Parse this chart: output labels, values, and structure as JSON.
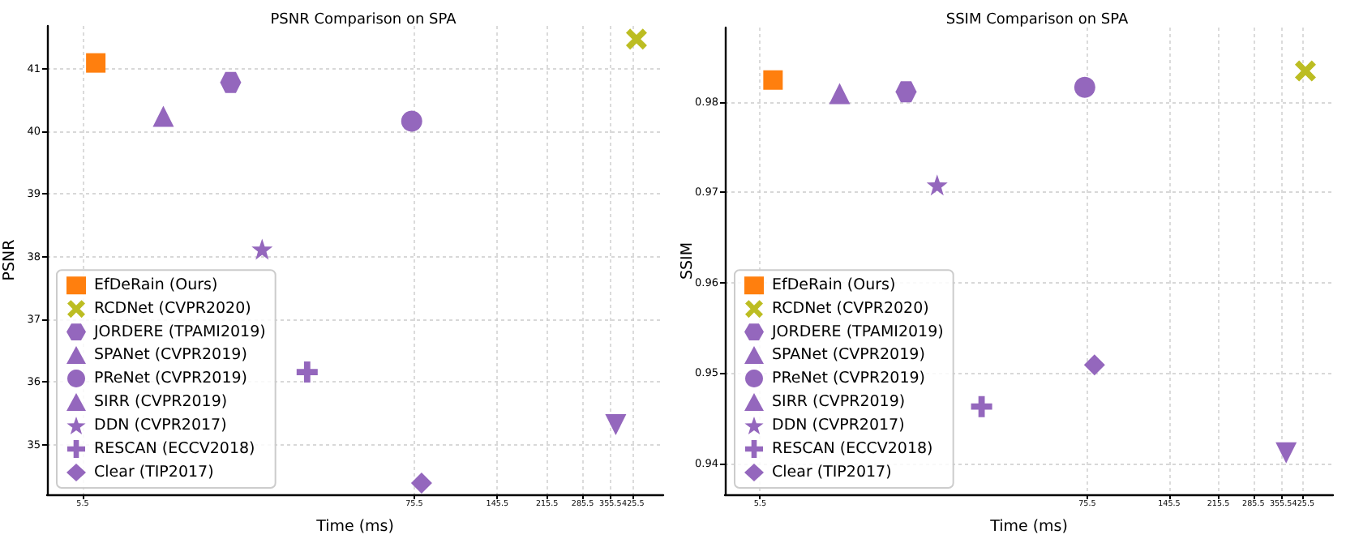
{
  "chart_data": [
    {
      "type": "scatter",
      "title": "PSNR Comparison on SPA",
      "xlabel": "Time (ms)",
      "ylabel": "PSNR",
      "log": "x",
      "grid": true,
      "legend": "bottom left",
      "xlim": [
        4.15,
        540
      ],
      "xticks": [
        5.5,
        75.5,
        145.5,
        215.5,
        285.5,
        355.5,
        425.5
      ],
      "ylim": [
        34.21,
        41.68
      ],
      "yticks": [
        35,
        36,
        37,
        38,
        39,
        40,
        41
      ],
      "series": [
        {
          "name": "EfDeRain (Ours)",
          "color": "#ff7f0e",
          "marker": "square",
          "x": [
            6.1
          ],
          "values": [
            41.09
          ]
        },
        {
          "name": "RCDNet (CVPR2020)",
          "color": "#bcbd22",
          "marker": "cross",
          "x": [
            437
          ],
          "values": [
            41.47
          ]
        },
        {
          "name": "JORDERE (TPAMI2019)",
          "color": "#9467bd",
          "x": [
            17.7
          ],
          "values": [
            40.78
          ]
        },
        {
          "name": "SPANet (CVPR2019)",
          "color": "#9467bd",
          "marker": "triangle",
          "x": [
            10.4
          ],
          "values": [
            40.24
          ]
        },
        {
          "name": "PReNet (CVPR2019)",
          "color": "#9467bd",
          "marker": "circle",
          "x": [
            74
          ],
          "values": [
            40.16
          ]
        },
        {
          "name": "SIRR (CVPR2019)",
          "color": "#9467bd",
          "marker": "triangle-down",
          "x": [
            371
          ],
          "values": [
            35.32
          ]
        },
        {
          "name": "DDN (CVPR2017)",
          "color": "#9467bd",
          "marker": "star",
          "x": [
            22.7
          ],
          "values": [
            38.12
          ]
        },
        {
          "name": "RESCAN (ECCV2018)",
          "color": "#9467bd",
          "marker": "plus",
          "x": [
            32.4
          ],
          "values": [
            36.16
          ]
        },
        {
          "name": "Clear (TIP2017)",
          "color": "#9467bd",
          "marker": "diamond",
          "x": [
            80
          ],
          "values": [
            34.39
          ]
        }
      ]
    },
    {
      "type": "scatter",
      "title": "SSIM Comparison on SPA",
      "xlabel": "Time (ms)",
      "ylabel": "SSIM",
      "log": "x",
      "grid": true,
      "legend": "bottom left",
      "xlim": [
        4.15,
        540
      ],
      "xticks": [
        5.5,
        75.5,
        145.5,
        215.5,
        285.5,
        355.5,
        425.5
      ],
      "ylim": [
        0.9366,
        0.9882
      ],
      "yticks": [
        0.94,
        0.95,
        0.96,
        0.97,
        0.98
      ],
      "series": [
        {
          "name": "EfDeRain (Ours)",
          "color": "#ff7f0e",
          "marker": "square",
          "x": [
            6.1
          ],
          "values": [
            0.9824
          ]
        },
        {
          "name": "RCDNet (CVPR2020)",
          "color": "#bcbd22",
          "marker": "cross",
          "x": [
            433
          ],
          "values": [
            0.9834
          ]
        },
        {
          "name": "JORDERE (TPAMI2019)",
          "color": "#9467bd",
          "x": [
            17.7
          ],
          "values": [
            0.9811
          ]
        },
        {
          "name": "SPANet (CVPR2019)",
          "color": "#9467bd",
          "marker": "triangle",
          "x": [
            10.4
          ],
          "values": [
            0.9809
          ]
        },
        {
          "name": "PReNet (CVPR2019)",
          "color": "#9467bd",
          "marker": "circle",
          "x": [
            74
          ],
          "values": [
            0.9816
          ]
        },
        {
          "name": "SIRR (CVPR2019)",
          "color": "#9467bd",
          "marker": "triangle-down",
          "x": [
            371
          ],
          "values": [
            0.9412
          ]
        },
        {
          "name": "DDN (CVPR2017)",
          "color": "#9467bd",
          "marker": "star",
          "x": [
            22.7
          ],
          "values": [
            0.9708
          ]
        },
        {
          "name": "RESCAN (ECCV2018)",
          "color": "#9467bd",
          "marker": "plus",
          "x": [
            32.4
          ],
          "values": [
            0.9463
          ]
        },
        {
          "name": "Clear (TIP2017)",
          "color": "#9467bd",
          "marker": "diamond",
          "x": [
            80
          ],
          "values": [
            0.9509
          ]
        }
      ]
    }
  ]
}
